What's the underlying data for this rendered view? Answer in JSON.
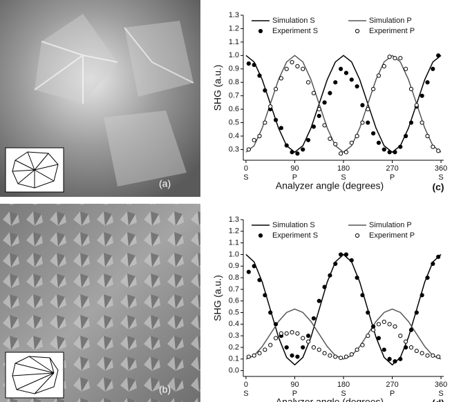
{
  "images": [
    {
      "label": "(a)"
    },
    {
      "label": "(b)"
    }
  ],
  "chart_data": [
    {
      "type": "line",
      "panel_label": "(c)",
      "ylabel": "SHG (a.u.)",
      "xlabel": "Analyzer angle (degrees)",
      "xlim": [
        -5,
        365
      ],
      "xticks": [
        0,
        90,
        180,
        270,
        360
      ],
      "xtick_sublabels": [
        "S",
        "P",
        "S",
        "P",
        "S"
      ],
      "ylim": [
        0.22,
        1.3
      ],
      "yticks": [
        {
          "value": 0.3,
          "label": "0.3"
        },
        {
          "value": 0.4,
          "label": "0.4"
        },
        {
          "value": 0.5,
          "label": "0.5"
        },
        {
          "value": 0.6,
          "label": "0.6"
        },
        {
          "value": 0.7,
          "label": "0.7"
        },
        {
          "value": 0.8,
          "label": "0.8"
        },
        {
          "value": 0.9,
          "label": "0.9"
        },
        {
          "value": 1,
          "label": "1.0"
        },
        {
          "value": 1.1,
          "label": "1.1"
        },
        {
          "value": 1.2,
          "label": "1.2"
        },
        {
          "value": 1.3,
          "label": "1.3"
        }
      ],
      "series": [
        {
          "name": "Simulation S",
          "style": "line",
          "color": "#000000",
          "x": [
            0,
            15,
            30,
            45,
            60,
            75,
            90,
            105,
            120,
            135,
            150,
            165,
            180,
            195,
            210,
            225,
            240,
            255,
            270,
            285,
            300,
            315,
            330,
            345,
            360
          ],
          "values": [
            1.0,
            0.952,
            0.82,
            0.64,
            0.46,
            0.328,
            0.28,
            0.328,
            0.46,
            0.64,
            0.82,
            0.952,
            1.0,
            0.952,
            0.82,
            0.64,
            0.46,
            0.328,
            0.28,
            0.328,
            0.46,
            0.64,
            0.82,
            0.952,
            1.0
          ]
        },
        {
          "name": "Simulation P",
          "style": "line",
          "color": "#555555",
          "x": [
            0,
            15,
            30,
            45,
            60,
            75,
            90,
            105,
            120,
            135,
            150,
            165,
            180,
            195,
            210,
            225,
            240,
            255,
            270,
            285,
            300,
            315,
            330,
            345,
            360
          ],
          "values": [
            0.28,
            0.328,
            0.46,
            0.64,
            0.82,
            0.952,
            1.0,
            0.952,
            0.82,
            0.64,
            0.46,
            0.328,
            0.28,
            0.328,
            0.46,
            0.64,
            0.82,
            0.952,
            1.0,
            0.952,
            0.82,
            0.64,
            0.46,
            0.328,
            0.28
          ]
        },
        {
          "name": "Experiment S",
          "style": "scatter",
          "color": "#000000",
          "marker_fill": "#000000",
          "x": [
            5,
            15,
            25,
            35,
            45,
            55,
            65,
            75,
            85,
            95,
            105,
            115,
            125,
            135,
            145,
            155,
            165,
            175,
            185,
            195,
            205,
            215,
            225,
            235,
            245,
            255,
            265,
            275,
            285,
            295,
            305,
            315,
            325,
            335,
            345,
            355
          ],
          "values": [
            0.94,
            0.93,
            0.85,
            0.74,
            0.6,
            0.52,
            0.46,
            0.33,
            0.28,
            0.27,
            0.3,
            0.37,
            0.47,
            0.55,
            0.65,
            0.72,
            0.8,
            0.9,
            0.87,
            0.82,
            0.77,
            0.63,
            0.5,
            0.42,
            0.35,
            0.3,
            0.28,
            0.28,
            0.32,
            0.4,
            0.5,
            0.62,
            0.7,
            0.8,
            0.9,
            1.0
          ]
        },
        {
          "name": "Experiment P",
          "style": "scatter",
          "color": "#000000",
          "marker_fill": "#ffffff",
          "x": [
            5,
            15,
            25,
            35,
            45,
            55,
            65,
            75,
            85,
            95,
            105,
            115,
            125,
            135,
            145,
            155,
            165,
            175,
            185,
            195,
            205,
            215,
            225,
            235,
            245,
            255,
            265,
            275,
            285,
            295,
            305,
            315,
            325,
            335,
            345,
            355
          ],
          "values": [
            0.3,
            0.37,
            0.4,
            0.5,
            0.62,
            0.75,
            0.83,
            0.9,
            0.95,
            0.92,
            0.9,
            0.8,
            0.72,
            0.6,
            0.48,
            0.38,
            0.34,
            0.27,
            0.28,
            0.35,
            0.4,
            0.5,
            0.6,
            0.75,
            0.85,
            0.92,
            0.99,
            0.98,
            0.98,
            0.9,
            0.75,
            0.63,
            0.5,
            0.4,
            0.32,
            0.29
          ]
        }
      ]
    },
    {
      "type": "line",
      "panel_label": "(d)",
      "ylabel": "SHG (a.u.)",
      "xlabel": "Analyzer angle (degrees)",
      "xlim": [
        -5,
        365
      ],
      "xticks": [
        0,
        90,
        180,
        270,
        360
      ],
      "xtick_sublabels": [
        "S",
        "P",
        "S",
        "P",
        "S"
      ],
      "ylim": [
        -0.05,
        1.3
      ],
      "yticks": [
        {
          "value": 0,
          "label": "0.0"
        },
        {
          "value": 0.1,
          "label": "0.1"
        },
        {
          "value": 0.2,
          "label": "0.2"
        },
        {
          "value": 0.3,
          "label": "0.3"
        },
        {
          "value": 0.4,
          "label": "0.4"
        },
        {
          "value": 0.5,
          "label": "0.5"
        },
        {
          "value": 0.6,
          "label": "0.6"
        },
        {
          "value": 0.7,
          "label": "0.7"
        },
        {
          "value": 0.8,
          "label": "0.8"
        },
        {
          "value": 0.9,
          "label": "0.9"
        },
        {
          "value": 1,
          "label": "1.0"
        },
        {
          "value": 1.1,
          "label": "1.1"
        },
        {
          "value": 1.2,
          "label": "1.2"
        },
        {
          "value": 1.3,
          "label": "1.3"
        }
      ],
      "series": [
        {
          "name": "Simulation S",
          "style": "line",
          "color": "#000000",
          "x": [
            0,
            15,
            30,
            45,
            60,
            75,
            90,
            105,
            120,
            135,
            150,
            165,
            180,
            195,
            210,
            225,
            240,
            255,
            270,
            285,
            300,
            315,
            330,
            345,
            360
          ],
          "values": [
            1.0,
            0.936,
            0.763,
            0.525,
            0.288,
            0.114,
            0.05,
            0.114,
            0.288,
            0.525,
            0.763,
            0.936,
            1.0,
            0.936,
            0.763,
            0.525,
            0.288,
            0.114,
            0.05,
            0.114,
            0.288,
            0.525,
            0.763,
            0.936,
            1.0
          ]
        },
        {
          "name": "Simulation P",
          "style": "line",
          "color": "#555555",
          "x": [
            0,
            15,
            30,
            45,
            60,
            75,
            90,
            105,
            120,
            135,
            150,
            165,
            180,
            195,
            210,
            225,
            240,
            255,
            270,
            285,
            300,
            315,
            330,
            345,
            360
          ],
          "values": [
            0.1,
            0.129,
            0.208,
            0.315,
            0.423,
            0.501,
            0.53,
            0.501,
            0.423,
            0.315,
            0.208,
            0.129,
            0.1,
            0.129,
            0.208,
            0.315,
            0.423,
            0.501,
            0.53,
            0.501,
            0.423,
            0.315,
            0.208,
            0.129,
            0.1
          ]
        },
        {
          "name": "Experiment S",
          "style": "scatter",
          "color": "#000000",
          "marker_fill": "#000000",
          "x": [
            5,
            15,
            25,
            35,
            45,
            55,
            65,
            75,
            85,
            95,
            105,
            115,
            125,
            135,
            145,
            155,
            165,
            175,
            185,
            195,
            205,
            215,
            225,
            235,
            245,
            255,
            265,
            275,
            285,
            295,
            305,
            315,
            325,
            335,
            345,
            355
          ],
          "values": [
            0.85,
            0.9,
            0.78,
            0.65,
            0.5,
            0.4,
            0.3,
            0.2,
            0.13,
            0.12,
            0.2,
            0.3,
            0.45,
            0.6,
            0.72,
            0.82,
            0.92,
            1.0,
            1.0,
            0.95,
            0.8,
            0.65,
            0.5,
            0.38,
            0.28,
            0.18,
            0.1,
            0.08,
            0.1,
            0.2,
            0.35,
            0.5,
            0.65,
            0.8,
            0.92,
            0.98
          ]
        },
        {
          "name": "Experiment P",
          "style": "scatter",
          "color": "#000000",
          "marker_fill": "#ffffff",
          "x": [
            5,
            15,
            25,
            35,
            45,
            55,
            65,
            75,
            85,
            95,
            105,
            115,
            125,
            135,
            145,
            155,
            165,
            175,
            185,
            195,
            205,
            215,
            225,
            235,
            245,
            255,
            265,
            275,
            285,
            295,
            305,
            315,
            325,
            335,
            345,
            355
          ],
          "values": [
            0.12,
            0.13,
            0.15,
            0.18,
            0.22,
            0.28,
            0.32,
            0.32,
            0.33,
            0.32,
            0.28,
            0.25,
            0.2,
            0.18,
            0.15,
            0.13,
            0.12,
            0.11,
            0.12,
            0.14,
            0.18,
            0.22,
            0.3,
            0.35,
            0.4,
            0.42,
            0.4,
            0.38,
            0.3,
            0.25,
            0.2,
            0.17,
            0.15,
            0.13,
            0.13,
            0.12
          ]
        }
      ]
    }
  ]
}
